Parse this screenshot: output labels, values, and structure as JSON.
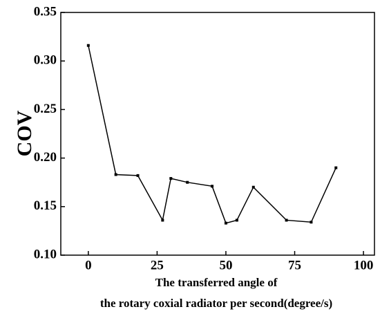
{
  "chart_data": {
    "type": "line",
    "ylabel": "COV",
    "xlabel": [
      "The transferred angle of",
      "the rotary coxial radiator per second(degree/s)"
    ],
    "x": [
      0,
      10,
      18,
      27,
      30,
      36,
      45,
      50,
      54,
      60,
      72,
      81,
      90
    ],
    "series": [
      {
        "name": "COV",
        "color": "#000000",
        "values": [
          0.316,
          0.183,
          0.182,
          0.136,
          0.179,
          0.175,
          0.171,
          0.133,
          0.136,
          0.17,
          0.136,
          0.134,
          0.19
        ]
      }
    ],
    "xlim": [
      -10,
      104
    ],
    "xticks": [
      0,
      25,
      50,
      75,
      100
    ],
    "ylim": [
      0.1,
      0.35
    ],
    "yticks": [
      {
        "value": 0.1,
        "label": "0.10"
      },
      0.15,
      {
        "value": 0.2,
        "label": "0.20"
      },
      0.25,
      {
        "value": 0.3,
        "label": "0.30"
      },
      0.35
    ]
  }
}
